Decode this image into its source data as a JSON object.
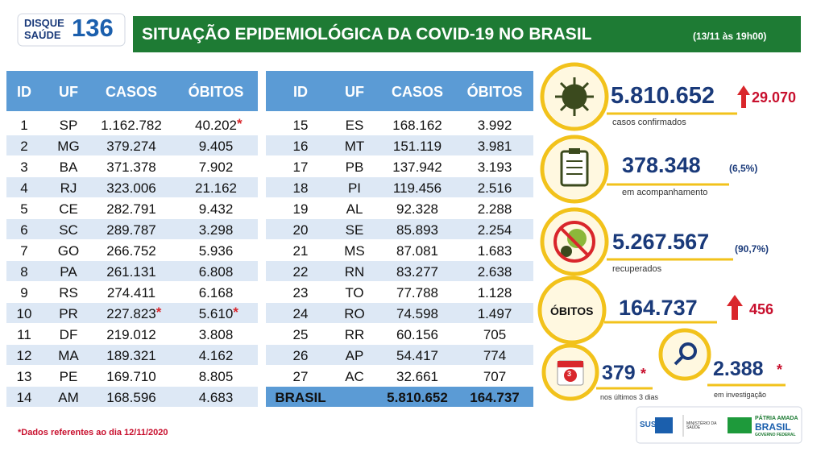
{
  "logo": {
    "line1": "DISQUE",
    "line2": "SAÚDE",
    "number": "136"
  },
  "header": {
    "title": "SITUAÇÃO EPIDEMIOLÓGICA DA COVID-19 NO BRASIL",
    "subtitle": "(13/11 às 19h00)"
  },
  "table_left": {
    "columns": [
      "ID",
      "UF",
      "CASOS",
      "ÓBITOS"
    ],
    "rows": [
      {
        "id": "1",
        "uf": "SP",
        "casos": "1.162.782",
        "obitos": "40.202",
        "obitos_note": "*"
      },
      {
        "id": "2",
        "uf": "MG",
        "casos": "379.274",
        "obitos": "9.405"
      },
      {
        "id": "3",
        "uf": "BA",
        "casos": "371.378",
        "obitos": "7.902"
      },
      {
        "id": "4",
        "uf": "RJ",
        "casos": "323.006",
        "obitos": "21.162"
      },
      {
        "id": "5",
        "uf": "CE",
        "casos": "282.791",
        "obitos": "9.432"
      },
      {
        "id": "6",
        "uf": "SC",
        "casos": "289.787",
        "obitos": "3.298"
      },
      {
        "id": "7",
        "uf": "GO",
        "casos": "266.752",
        "obitos": "5.936"
      },
      {
        "id": "8",
        "uf": "PA",
        "casos": "261.131",
        "obitos": "6.808"
      },
      {
        "id": "9",
        "uf": "RS",
        "casos": "274.411",
        "obitos": "6.168"
      },
      {
        "id": "10",
        "uf": "PR",
        "casos": "227.823",
        "casos_note": "*",
        "obitos": "5.610",
        "obitos_note": "*"
      },
      {
        "id": "11",
        "uf": "DF",
        "casos": "219.012",
        "obitos": "3.808"
      },
      {
        "id": "12",
        "uf": "MA",
        "casos": "189.321",
        "obitos": "4.162"
      },
      {
        "id": "13",
        "uf": "PE",
        "casos": "169.710",
        "obitos": "8.805"
      },
      {
        "id": "14",
        "uf": "AM",
        "casos": "168.596",
        "obitos": "4.683"
      }
    ]
  },
  "table_right": {
    "columns": [
      "ID",
      "UF",
      "CASOS",
      "ÓBITOS"
    ],
    "rows": [
      {
        "id": "15",
        "uf": "ES",
        "casos": "168.162",
        "obitos": "3.992"
      },
      {
        "id": "16",
        "uf": "MT",
        "casos": "151.119",
        "obitos": "3.981"
      },
      {
        "id": "17",
        "uf": "PB",
        "casos": "137.942",
        "obitos": "3.193"
      },
      {
        "id": "18",
        "uf": "PI",
        "casos": "119.456",
        "obitos": "2.516"
      },
      {
        "id": "19",
        "uf": "AL",
        "casos": "92.328",
        "obitos": "2.288"
      },
      {
        "id": "20",
        "uf": "SE",
        "casos": "85.893",
        "obitos": "2.254"
      },
      {
        "id": "21",
        "uf": "MS",
        "casos": "87.081",
        "obitos": "1.683"
      },
      {
        "id": "22",
        "uf": "RN",
        "casos": "83.277",
        "obitos": "2.638"
      },
      {
        "id": "23",
        "uf": "TO",
        "casos": "77.788",
        "obitos": "1.128"
      },
      {
        "id": "24",
        "uf": "RO",
        "casos": "74.598",
        "obitos": "1.497"
      },
      {
        "id": "25",
        "uf": "RR",
        "casos": "60.156",
        "obitos": "705"
      },
      {
        "id": "26",
        "uf": "AP",
        "casos": "54.417",
        "obitos": "774"
      },
      {
        "id": "27",
        "uf": "AC",
        "casos": "32.661",
        "obitos": "707"
      }
    ],
    "total": {
      "label": "BRASIL",
      "casos": "5.810.652",
      "obitos": "164.737"
    }
  },
  "stats": {
    "confirmed": {
      "value": "5.810.652",
      "increase": "29.070",
      "label": "casos confirmados"
    },
    "monitoring": {
      "value": "378.348",
      "percent": "(6,5%)",
      "label": "em acompanhamento"
    },
    "recovered": {
      "value": "5.267.567",
      "percent": "(90,7%)",
      "label": "recuperados"
    },
    "deaths": {
      "badge": "ÓBITOS",
      "value": "164.737",
      "increase": "456"
    },
    "recent": {
      "icon": "3",
      "value": "379",
      "note": "*",
      "label": "nos últimos 3 dias"
    },
    "investigation": {
      "value": "2.388",
      "note": "*",
      "label": "em investigação"
    }
  },
  "footnote": "*Dados referentes ao dia 12/11/2020",
  "footer_logos": {
    "sus": "SUS",
    "ministry": "MINISTÉRIO DA SAÚDE",
    "slogan_line1": "PÁTRIA AMADA",
    "slogan_line2": "BRASIL",
    "government": "GOVERNO FEDERAL"
  }
}
